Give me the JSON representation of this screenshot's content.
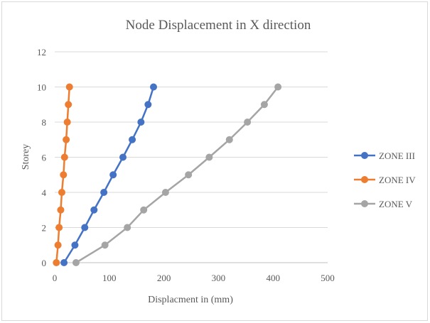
{
  "chart_data": {
    "type": "scatter",
    "title": "Node Displacement in X direction",
    "xlabel": "Displacment in (mm)",
    "ylabel": "Storey",
    "xlim": [
      0,
      500
    ],
    "ylim": [
      0,
      12
    ],
    "xticks": [
      0,
      100,
      200,
      300,
      400,
      500
    ],
    "yticks": [
      0,
      2,
      4,
      6,
      8,
      10,
      12
    ],
    "grid": "horizontal",
    "legend_position": "right",
    "series": [
      {
        "name": "ZONE III",
        "color": "#4472c4",
        "points": [
          [
            17,
            0
          ],
          [
            37,
            1
          ],
          [
            55,
            2
          ],
          [
            72,
            3
          ],
          [
            90,
            4
          ],
          [
            107,
            5
          ],
          [
            125,
            6
          ],
          [
            142,
            7
          ],
          [
            158,
            8
          ],
          [
            171,
            9
          ],
          [
            181,
            10
          ]
        ]
      },
      {
        "name": "ZONE IV",
        "color": "#ed7d31",
        "points": [
          [
            3,
            0
          ],
          [
            6,
            1
          ],
          [
            8,
            2
          ],
          [
            11,
            3
          ],
          [
            13,
            4
          ],
          [
            16,
            5
          ],
          [
            18,
            6
          ],
          [
            21,
            7
          ],
          [
            23,
            8
          ],
          [
            25,
            9
          ],
          [
            27,
            10
          ]
        ]
      },
      {
        "name": "ZONE V",
        "color": "#a5a5a5",
        "points": [
          [
            39,
            0
          ],
          [
            92,
            1
          ],
          [
            133,
            2
          ],
          [
            163,
            3
          ],
          [
            203,
            4
          ],
          [
            245,
            5
          ],
          [
            283,
            6
          ],
          [
            320,
            7
          ],
          [
            353,
            8
          ],
          [
            384,
            9
          ],
          [
            409,
            10
          ]
        ]
      }
    ]
  }
}
